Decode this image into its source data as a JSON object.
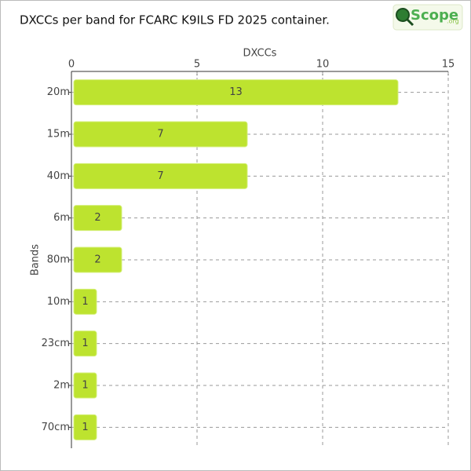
{
  "chart_data": {
    "type": "bar",
    "title": "DXCCs per band for FCARC K9ILS FD 2025 container.",
    "logo": {
      "text": "Scope",
      "suffix": ".org"
    },
    "x_label": "DXCCs",
    "y_label": "Bands",
    "categories": [
      "20m",
      "15m",
      "40m",
      "6m",
      "80m",
      "10m",
      "23cm",
      "2m",
      "70cm"
    ],
    "values": [
      13,
      7,
      7,
      2,
      2,
      1,
      1,
      1,
      1
    ],
    "color": "#bde32f",
    "xlim": [
      0,
      15
    ],
    "xticks": [
      0,
      5,
      10,
      15
    ],
    "grid": true
  }
}
